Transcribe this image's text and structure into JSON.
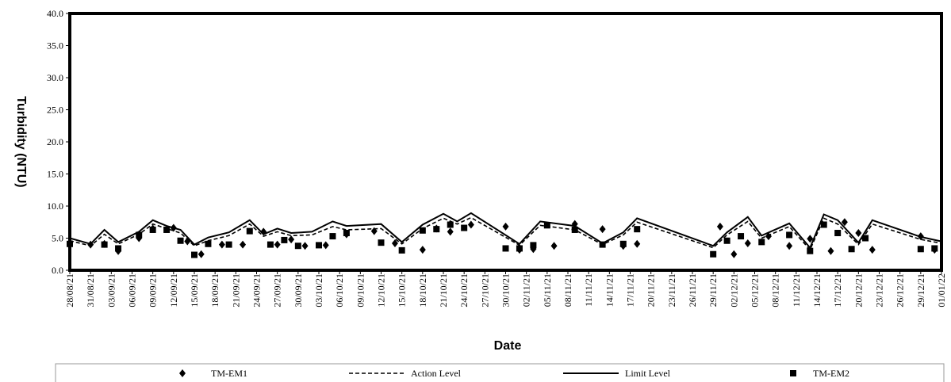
{
  "chart_data": {
    "type": "line",
    "title": "",
    "xlabel": "Date",
    "ylabel": "Turbidity (NTU)",
    "ylim": [
      0,
      40
    ],
    "yticks": [
      "0.0",
      "5.0",
      "10.0",
      "15.0",
      "20.0",
      "25.0",
      "30.0",
      "35.0",
      "40.0"
    ],
    "xlim": [
      "28/08/21",
      "01/01/22"
    ],
    "xticks": [
      "28/08/21",
      "31/08/21",
      "03/09/21",
      "06/09/21",
      "09/09/21",
      "12/09/21",
      "15/09/21",
      "18/09/21",
      "21/09/21",
      "24/09/21",
      "27/09/21",
      "30/09/21",
      "03/10/21",
      "06/10/21",
      "09/10/21",
      "12/10/21",
      "15/10/21",
      "18/10/21",
      "21/10/21",
      "24/10/21",
      "27/10/21",
      "30/10/21",
      "02/11/21",
      "05/11/21",
      "08/11/21",
      "11/11/21",
      "14/11/21",
      "17/11/21",
      "20/11/21",
      "23/11/21",
      "26/11/21",
      "29/11/21",
      "02/12/21",
      "05/12/21",
      "08/12/21",
      "11/12/21",
      "14/12/21",
      "17/12/21",
      "20/12/21",
      "23/12/21",
      "26/12/21",
      "29/12/21",
      "01/01/22"
    ],
    "grid": false,
    "legend_position": "bottom",
    "series": [
      {
        "name": "TM-EM1",
        "style": "diamond-marker",
        "color": "#000000",
        "x": [
          "28/08/21",
          "31/08/21",
          "02/09/21",
          "04/09/21",
          "07/09/21",
          "09/09/21",
          "12/09/21",
          "14/09/21",
          "16/09/21",
          "19/09/21",
          "22/09/21",
          "25/09/21",
          "27/09/21",
          "29/09/21",
          "01/10/21",
          "04/10/21",
          "07/10/21",
          "11/10/21",
          "14/10/21",
          "18/10/21",
          "20/10/21",
          "22/10/21",
          "25/10/21",
          "30/10/21",
          "01/11/21",
          "03/11/21",
          "06/11/21",
          "09/11/21",
          "13/11/21",
          "16/11/21",
          "18/11/21",
          "30/11/21",
          "02/12/21",
          "04/12/21",
          "07/12/21",
          "10/12/21",
          "13/12/21",
          "16/12/21",
          "18/12/21",
          "20/12/21",
          "22/12/21",
          "29/12/21",
          "31/12/21"
        ],
        "values": [
          4.2,
          4.0,
          4.1,
          3.0,
          5.0,
          6.5,
          6.6,
          4.5,
          2.5,
          4.0,
          4.0,
          6.0,
          4.0,
          4.8,
          3.8,
          3.9,
          5.6,
          6.1,
          4.2,
          3.2,
          6.5,
          6.0,
          7.1,
          6.8,
          3.2,
          3.3,
          3.8,
          7.2,
          6.4,
          3.8,
          4.1,
          6.8,
          2.5,
          4.2,
          5.3,
          3.8,
          4.9,
          3.0,
          7.5,
          5.8,
          3.2,
          5.3,
          3.2
        ]
      },
      {
        "name": "Action Level",
        "style": "dashed",
        "color": "#000000",
        "x": [
          "28/08/21",
          "31/08/21",
          "02/09/21",
          "04/09/21",
          "07/09/21",
          "09/09/21",
          "11/09/21",
          "13/09/21",
          "15/09/21",
          "17/09/21",
          "20/09/21",
          "23/09/21",
          "25/09/21",
          "27/09/21",
          "29/09/21",
          "02/10/21",
          "05/10/21",
          "07/10/21",
          "12/10/21",
          "15/10/21",
          "18/10/21",
          "21/10/21",
          "23/10/21",
          "25/10/21",
          "01/11/21",
          "04/11/21",
          "09/11/21",
          "13/11/21",
          "16/11/21",
          "18/11/21",
          "29/11/21",
          "01/12/21",
          "04/12/21",
          "06/12/21",
          "10/12/21",
          "13/12/21",
          "15/12/21",
          "17/12/21",
          "20/12/21",
          "22/12/21",
          "29/12/21",
          "01/01/22"
        ],
        "values": [
          4.6,
          3.8,
          5.6,
          4.1,
          5.6,
          7.2,
          6.5,
          5.8,
          3.8,
          4.6,
          5.4,
          7.2,
          5.3,
          6.0,
          5.4,
          5.5,
          6.8,
          6.3,
          6.5,
          4.1,
          6.5,
          8.1,
          7.2,
          8.2,
          3.9,
          7.0,
          6.3,
          4.0,
          5.5,
          7.5,
          3.5,
          5.5,
          7.6,
          5.0,
          6.8,
          3.2,
          8.1,
          7.2,
          4.0,
          7.2,
          4.8,
          4.2
        ]
      },
      {
        "name": "Limit Level",
        "style": "solid",
        "color": "#000000",
        "x": [
          "28/08/21",
          "31/08/21",
          "02/09/21",
          "04/09/21",
          "07/09/21",
          "09/09/21",
          "11/09/21",
          "13/09/21",
          "15/09/21",
          "17/09/21",
          "20/09/21",
          "23/09/21",
          "25/09/21",
          "27/09/21",
          "29/09/21",
          "02/10/21",
          "05/10/21",
          "07/10/21",
          "12/10/21",
          "15/10/21",
          "18/10/21",
          "21/10/21",
          "23/10/21",
          "25/10/21",
          "01/11/21",
          "04/11/21",
          "09/11/21",
          "13/11/21",
          "16/11/21",
          "18/11/21",
          "29/11/21",
          "01/12/21",
          "04/12/21",
          "06/12/21",
          "10/12/21",
          "13/12/21",
          "15/12/21",
          "17/12/21",
          "20/12/21",
          "22/12/21",
          "29/12/21",
          "01/01/22"
        ],
        "values": [
          5.0,
          4.1,
          6.3,
          4.4,
          6.0,
          7.8,
          6.9,
          6.3,
          4.0,
          5.1,
          5.9,
          7.8,
          5.6,
          6.5,
          5.8,
          6.0,
          7.6,
          6.9,
          7.2,
          4.4,
          7.1,
          8.8,
          7.6,
          8.9,
          4.1,
          7.6,
          6.9,
          4.2,
          5.9,
          8.1,
          3.8,
          5.9,
          8.3,
          5.4,
          7.3,
          3.5,
          8.7,
          7.8,
          4.3,
          7.8,
          5.2,
          4.5
        ]
      },
      {
        "name": "TM-EM2",
        "style": "square-marker",
        "color": "#000000",
        "x": [
          "28/08/21",
          "02/09/21",
          "04/09/21",
          "07/09/21",
          "09/09/21",
          "11/09/21",
          "13/09/21",
          "15/09/21",
          "17/09/21",
          "20/09/21",
          "23/09/21",
          "26/09/21",
          "28/09/21",
          "30/09/21",
          "03/10/21",
          "05/10/21",
          "07/10/21",
          "12/10/21",
          "15/10/21",
          "18/10/21",
          "20/10/21",
          "22/10/21",
          "24/10/21",
          "30/10/21",
          "01/11/21",
          "03/11/21",
          "05/11/21",
          "09/11/21",
          "13/11/21",
          "16/11/21",
          "18/11/21",
          "29/11/21",
          "01/12/21",
          "03/12/21",
          "06/12/21",
          "10/12/21",
          "13/12/21",
          "15/12/21",
          "17/12/21",
          "19/12/21",
          "21/12/21",
          "29/12/21",
          "31/12/21"
        ],
        "values": [
          4.1,
          4.0,
          3.4,
          5.5,
          6.3,
          6.3,
          4.6,
          2.4,
          4.1,
          4.0,
          6.1,
          4.0,
          4.7,
          3.8,
          3.9,
          5.3,
          5.8,
          4.3,
          3.1,
          6.2,
          6.4,
          7.1,
          6.6,
          3.4,
          3.4,
          3.9,
          7.0,
          6.3,
          4.0,
          4.1,
          6.4,
          2.5,
          4.6,
          5.3,
          4.4,
          5.5,
          3.0,
          7.1,
          5.8,
          3.3,
          5.0,
          3.3,
          3.4
        ]
      }
    ]
  }
}
